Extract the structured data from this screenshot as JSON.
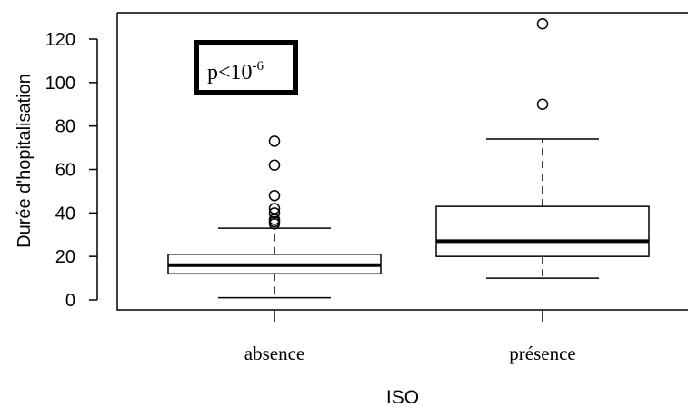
{
  "chart_data": {
    "type": "box",
    "xlabel": "ISO",
    "ylabel": "Durée d'hopitalisation",
    "categories": [
      "absence",
      "présence"
    ],
    "yticks": [
      "0",
      "20",
      "40",
      "60",
      "80",
      "100",
      "120"
    ],
    "ylim": [
      -5,
      132
    ],
    "boxes": [
      {
        "category": "absence",
        "min": 1,
        "q1": 12,
        "median": 16,
        "q3": 21,
        "max": 33,
        "outliers": [
          35,
          36,
          37,
          40,
          42,
          48,
          62,
          73
        ]
      },
      {
        "category": "présence",
        "min": 10,
        "q1": 20,
        "median": 27,
        "q3": 43,
        "max": 74,
        "outliers": [
          90,
          127
        ]
      }
    ],
    "annotation": {
      "base": "p<10",
      "exponent": "-6"
    }
  }
}
